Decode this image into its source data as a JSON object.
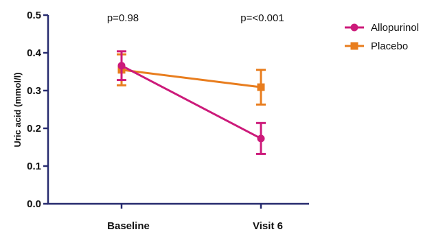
{
  "chart_data": {
    "type": "line",
    "xlabel": "",
    "ylabel": "Uric acid  (mmol/l)",
    "categories": [
      "Baseline",
      "Visit 6"
    ],
    "ylim": [
      0,
      0.5
    ],
    "yticks": [
      "0.0",
      "0.1",
      "0.2",
      "0.3",
      "0.4",
      "0.5"
    ],
    "ytick_values": [
      0,
      0.1,
      0.2,
      0.3,
      0.4,
      0.5
    ],
    "grid": false,
    "legend": "top-right",
    "annotations": [
      "p=0.98",
      "p=<0.001"
    ],
    "series": [
      {
        "name": "Allopurinol",
        "marker": "circle",
        "color": "#cc1a7a",
        "values": [
          0.366,
          0.173
        ],
        "error_low": [
          0.328,
          0.132
        ],
        "error_high": [
          0.404,
          0.214
        ]
      },
      {
        "name": "Placebo",
        "marker": "square",
        "color": "#e87d1e",
        "values": [
          0.355,
          0.309
        ],
        "error_low": [
          0.314,
          0.263
        ],
        "error_high": [
          0.396,
          0.355
        ]
      }
    ]
  }
}
